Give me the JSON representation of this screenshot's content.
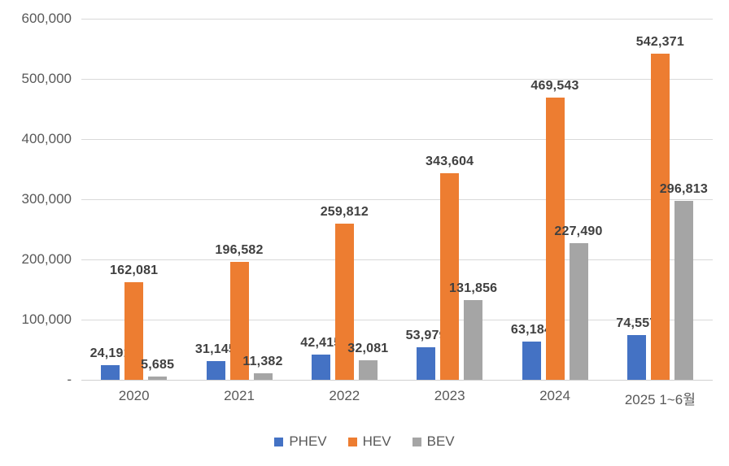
{
  "chart_data": {
    "type": "bar",
    "title": "",
    "xlabel": "",
    "ylabel": "",
    "categories": [
      "2020",
      "2021",
      "2022",
      "2023",
      "2024",
      "2025 1~6월"
    ],
    "series": [
      {
        "name": "PHEV",
        "color": "#4472C4",
        "values": [
          24191,
          31145,
          42415,
          53979,
          63184,
          74557
        ],
        "labels": [
          "24,191",
          "31,145",
          "42,415",
          "53,979",
          "63,184",
          "74,557"
        ]
      },
      {
        "name": "HEV",
        "color": "#ED7D31",
        "values": [
          162081,
          196582,
          259812,
          343604,
          469543,
          542371
        ],
        "labels": [
          "162,081",
          "196,582",
          "259,812",
          "343,604",
          "469,543",
          "542,371"
        ]
      },
      {
        "name": "BEV",
        "color": "#A5A5A5",
        "values": [
          5685,
          11382,
          32081,
          131856,
          227490,
          296813
        ],
        "labels": [
          "5,685",
          "11,382",
          "32,081",
          "131,856",
          "227,490",
          "296,813"
        ]
      }
    ],
    "ylim": [
      0,
      600000
    ],
    "yticks": [
      {
        "value": 0,
        "label": "-"
      },
      {
        "value": 100000,
        "label": "100,000"
      },
      {
        "value": 200000,
        "label": "200,000"
      },
      {
        "value": 300000,
        "label": "300,000"
      },
      {
        "value": 400000,
        "label": "400,000"
      },
      {
        "value": 500000,
        "label": "500,000"
      },
      {
        "value": 600000,
        "label": "600,000"
      }
    ],
    "grid": true,
    "data_labels": true,
    "legend_position": "bottom"
  },
  "style": {
    "background": "#FFFFFF",
    "gridline_color": "#D9D9D9",
    "axis_text_color": "#595959",
    "data_label_color": "#404040"
  }
}
